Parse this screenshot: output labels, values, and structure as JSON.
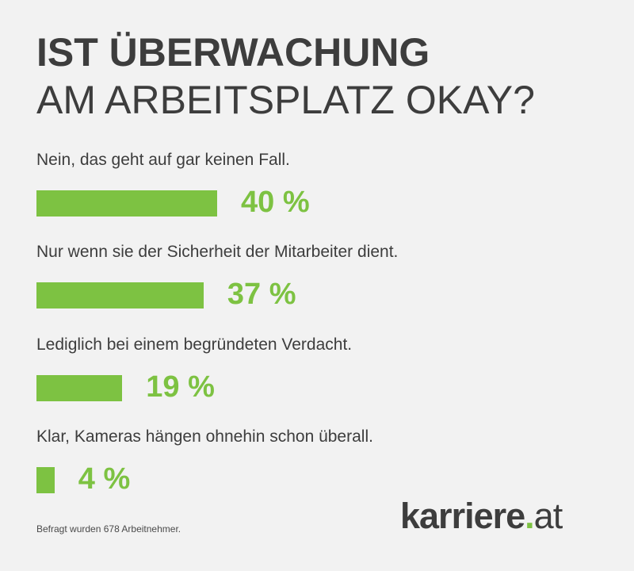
{
  "title": {
    "line1": "IST ÜBERWACHUNG",
    "line2": "AM ARBEITSPLATZ OKAY?"
  },
  "chart_data": {
    "type": "bar",
    "orientation": "horizontal",
    "categories": [
      "Nein, das geht auf gar keinen Fall.",
      "Nur wenn sie der Sicherheit der Mitarbeiter dient.",
      "Lediglich bei einem begründeten Verdacht.",
      "Klar, Kameras hängen ohnehin schon überall."
    ],
    "values": [
      40,
      37,
      19,
      4
    ],
    "value_labels": [
      "40 %",
      "37 %",
      "19 %",
      "4 %"
    ],
    "unit": "%",
    "bar_color": "#7dc242",
    "grid": false
  },
  "footnote": "Befragt wurden 678 Arbeitnehmer.",
  "logo": {
    "name": "karriere",
    "dot": ".",
    "tld": "at",
    "accent_color": "#7dc242"
  }
}
